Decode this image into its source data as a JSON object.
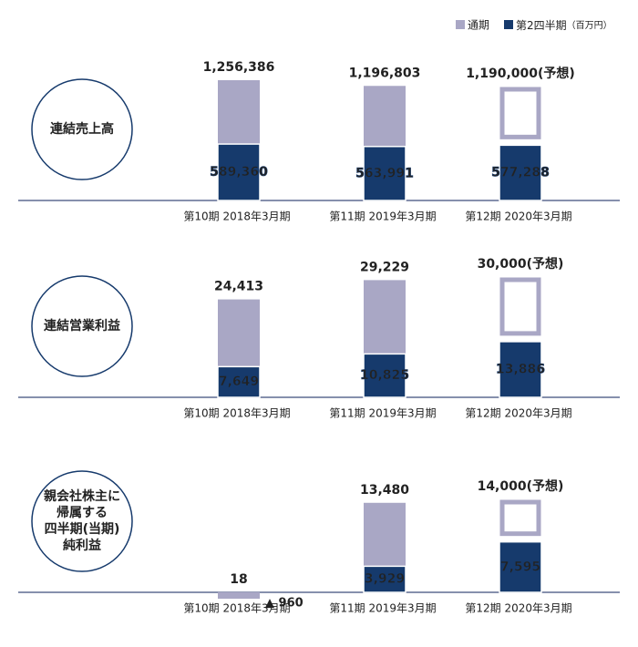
{
  "legend": {
    "unit": "（百万円）"
  },
  "chart_data": [
    {
      "type": "bar",
      "title": [
        "連結売上高"
      ],
      "categories": [
        "第10期 2018年3月期",
        "第11期 2019年3月期",
        "第12期 2020年3月期"
      ],
      "forecast": [
        false,
        false,
        true
      ],
      "series": [
        {
          "name": "通期",
          "color": "#a9a7c5",
          "values": [
            1256386,
            1196803,
            1190000
          ],
          "value_labels": [
            "1,256,386",
            "1,196,803",
            "1,190,000(予想)"
          ]
        },
        {
          "name": "第2四半期",
          "color": "#163a6c",
          "values": [
            589360,
            563991,
            577288
          ],
          "value_labels": [
            "589,360",
            "563,991",
            "577,288"
          ]
        }
      ]
    },
    {
      "type": "bar",
      "title": [
        "連結営業利益"
      ],
      "categories": [
        "第10期 2018年3月期",
        "第11期 2019年3月期",
        "第12期 2020年3月期"
      ],
      "forecast": [
        false,
        false,
        true
      ],
      "series": [
        {
          "name": "通期",
          "color": "#a9a7c5",
          "values": [
            24413,
            29229,
            30000
          ],
          "value_labels": [
            "24,413",
            "29,229",
            "30,000(予想)"
          ]
        },
        {
          "name": "第2四半期",
          "color": "#163a6c",
          "values": [
            7649,
            10825,
            13886
          ],
          "value_labels": [
            "7,649",
            "10,825",
            "13,886"
          ]
        }
      ]
    },
    {
      "type": "bar",
      "title": [
        "親会社株主に",
        "帰属する",
        "四半期(当期)",
        "純利益"
      ],
      "categories": [
        "第10期 2018年3月期",
        "第11期 2019年3月期",
        "第12期 2020年3月期"
      ],
      "forecast": [
        false,
        false,
        true
      ],
      "series": [
        {
          "name": "通期",
          "color": "#a9a7c5",
          "values": [
            18,
            13480,
            14000
          ],
          "value_labels": [
            "18",
            "13,480",
            "14,000(予想)"
          ]
        },
        {
          "name": "第2四半期",
          "color": "#163a6c",
          "colors": [
            "#a9a7c5",
            "#163a6c",
            "#163a6c"
          ],
          "values": [
            -960,
            3929,
            7595
          ],
          "value_labels": [
            "▲ 960",
            "3,929",
            "7,595"
          ]
        }
      ]
    }
  ]
}
